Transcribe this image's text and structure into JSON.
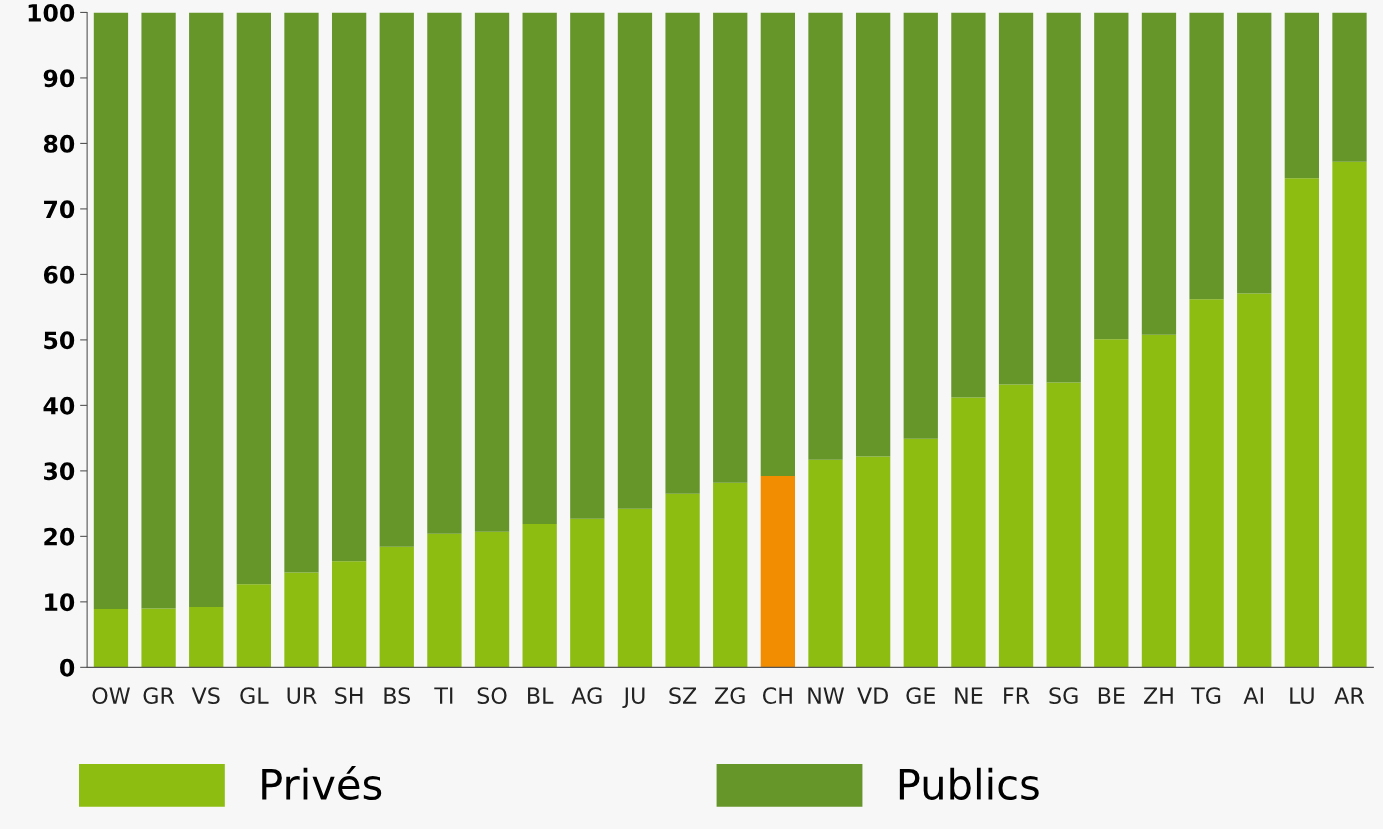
{
  "chart_data": {
    "type": "bar",
    "stacked": true,
    "categories": [
      "OW",
      "GR",
      "VS",
      "GL",
      "UR",
      "SH",
      "BS",
      "TI",
      "SO",
      "BL",
      "AG",
      "JU",
      "SZ",
      "ZG",
      "CH",
      "NW",
      "VD",
      "GE",
      "NE",
      "FR",
      "SG",
      "BE",
      "ZH",
      "TG",
      "AI",
      "LU",
      "AR"
    ],
    "series": [
      {
        "name": "Privés",
        "color": "#8cbd10",
        "colors": [
          "#8cbd10",
          "#8cbd10",
          "#8cbd10",
          "#8cbd10",
          "#8cbd10",
          "#8cbd10",
          "#8cbd10",
          "#8cbd10",
          "#8cbd10",
          "#8cbd10",
          "#8cbd10",
          "#8cbd10",
          "#8cbd10",
          "#8cbd10",
          "#f28c00",
          "#8cbd10",
          "#8cbd10",
          "#8cbd10",
          "#8cbd10",
          "#8cbd10",
          "#8cbd10",
          "#8cbd10",
          "#8cbd10",
          "#8cbd10",
          "#8cbd10",
          "#8cbd10",
          "#8cbd10"
        ],
        "values": [
          8.9,
          9.0,
          9.2,
          12.7,
          14.5,
          16.2,
          18.4,
          20.4,
          20.7,
          21.9,
          22.7,
          24.2,
          26.5,
          28.2,
          29.2,
          31.7,
          32.2,
          34.9,
          41.2,
          43.2,
          43.5,
          50.1,
          50.8,
          56.2,
          57.1,
          74.7,
          77.2
        ]
      },
      {
        "name": "Publics",
        "color": "#66962a",
        "values": [
          91.1,
          91.0,
          90.8,
          87.3,
          85.5,
          83.8,
          81.6,
          79.6,
          79.3,
          78.1,
          77.3,
          75.8,
          73.5,
          71.8,
          70.8,
          68.3,
          67.8,
          65.1,
          58.8,
          56.8,
          56.5,
          49.9,
          49.2,
          43.8,
          42.9,
          25.3,
          22.8
        ]
      }
    ],
    "ylim": [
      0,
      100
    ],
    "yticks": [
      0,
      10,
      20,
      30,
      40,
      50,
      60,
      70,
      80,
      90,
      100
    ],
    "grid": false,
    "legend": "bottom"
  }
}
